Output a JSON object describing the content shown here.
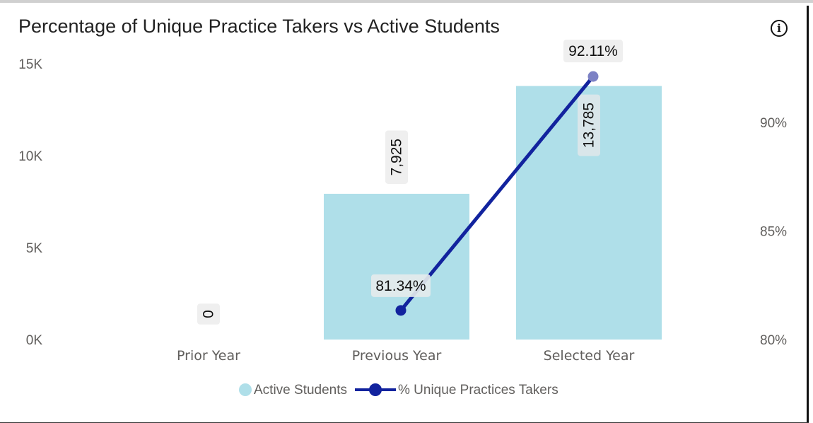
{
  "header": {
    "title": "Percentage of Unique Practice Takers vs Active Students",
    "info_icon": "info-icon"
  },
  "chart_data": {
    "type": "bar",
    "title": "Percentage of Unique Practice Takers vs Active Students",
    "categories": [
      "Prior Year",
      "Previous Year",
      "Selected Year"
    ],
    "series": [
      {
        "name": "Active Students",
        "type": "bar",
        "axis": "left",
        "color": "#afdfe9",
        "values": [
          0,
          7925,
          13785
        ],
        "labels": [
          "0",
          "7,925",
          "13,785"
        ]
      },
      {
        "name": "% Unique Practices Takers",
        "type": "line",
        "axis": "right",
        "color": "#12239e",
        "values": [
          null,
          81.34,
          92.11
        ],
        "labels": [
          "",
          "81.34%",
          "92.11%"
        ]
      }
    ],
    "y_left": {
      "ylim": [
        0,
        15000
      ],
      "ticks": [
        0,
        5000,
        10000,
        15000
      ],
      "tick_labels": [
        "0K",
        "5K",
        "10K",
        "15K"
      ]
    },
    "y_right": {
      "ylim": [
        80,
        92.7
      ],
      "ticks": [
        80,
        85,
        90
      ],
      "tick_labels": [
        "80%",
        "85%",
        "90%"
      ]
    },
    "grid": false,
    "legend": {
      "position": "bottom-center",
      "entries": [
        "Active Students",
        "% Unique Practices Takers"
      ]
    }
  }
}
